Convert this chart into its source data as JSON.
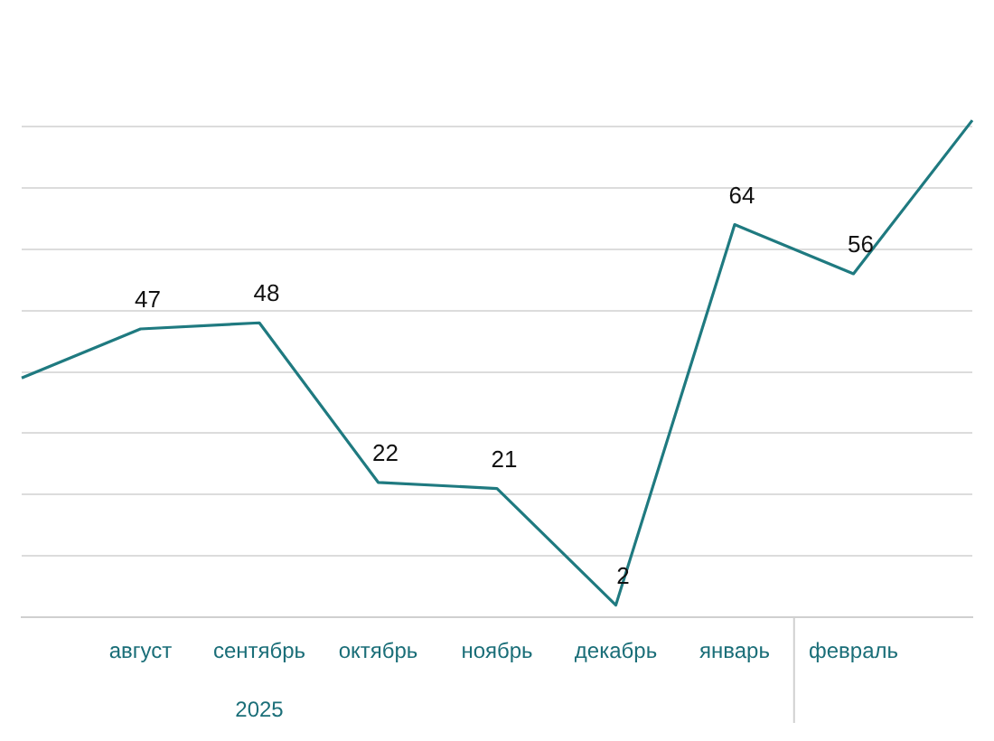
{
  "chart_data": {
    "type": "line",
    "categories": [
      null,
      "август",
      "сентябрь",
      "октябрь",
      "ноябрь",
      "декабрь",
      "январь",
      "февраль",
      null
    ],
    "series": [
      {
        "color": "#1f7a80",
        "values": [
          39,
          47,
          48,
          22,
          21,
          2,
          64,
          56,
          81
        ],
        "value_labels": [
          null,
          "47",
          "48",
          "22",
          "21",
          "2",
          "64",
          "56",
          null
        ]
      }
    ],
    "yticks": [
      {
        "value": 0,
        "label": null
      },
      {
        "value": 10,
        "label": null
      },
      {
        "value": 20,
        "label": null
      },
      {
        "value": 30,
        "label": null
      },
      {
        "value": 40,
        "label": null
      },
      {
        "value": 50,
        "label": null
      },
      {
        "value": 60,
        "label": null
      },
      {
        "value": 70,
        "label": null
      },
      {
        "value": 80,
        "label": null
      }
    ],
    "grid": "y",
    "tick_labels": "x",
    "marker": "none",
    "line_style": "solid",
    "legend": false,
    "annotations": [
      "2025"
    ]
  }
}
